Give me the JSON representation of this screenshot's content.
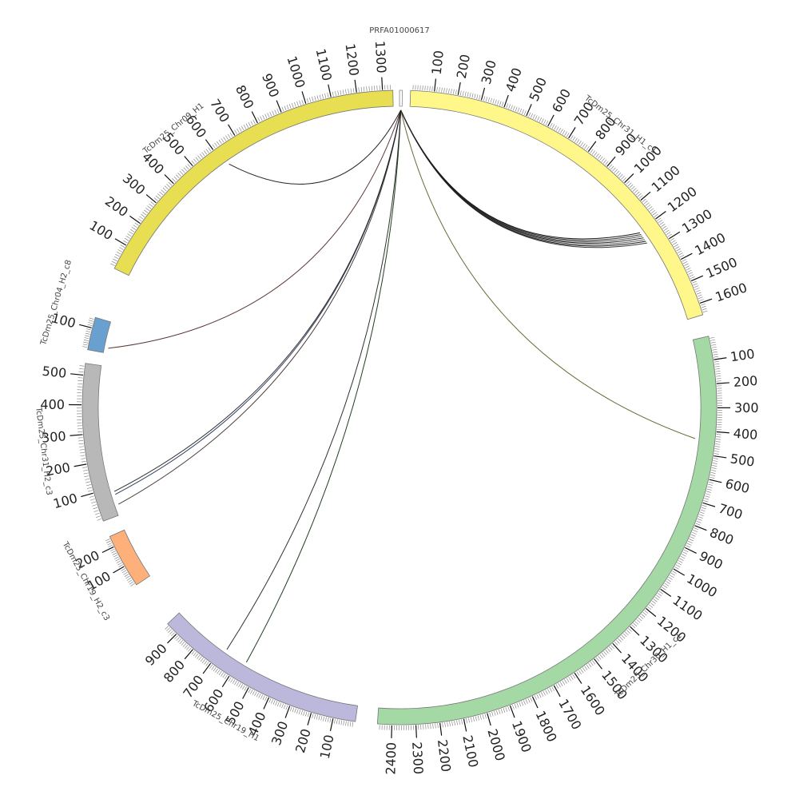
{
  "diagram": {
    "type": "circos",
    "center_contig": {
      "name": "PRFA01000617",
      "start_deg": 0,
      "end_deg": 0.5
    },
    "segments": [
      {
        "name": "TcDm25_Chr31_H1_c1",
        "color": "#fff78a",
        "start_deg": 2,
        "end_deg": 73,
        "length": 1650,
        "label_angle_deg": 38,
        "tick_labels": [
          "100",
          "200",
          "300",
          "400",
          "500",
          "600",
          "700",
          "800",
          "900",
          "1000",
          "1100",
          "1200",
          "1300",
          "1400",
          "1500",
          "1600"
        ]
      },
      {
        "name": "TcDm25_Chr30_H1_c1",
        "color": "#a4d8a4",
        "start_deg": 77,
        "end_deg": 184,
        "length": 2460,
        "label_angle_deg": 136,
        "tick_labels": [
          "100",
          "200",
          "300",
          "400",
          "500",
          "600",
          "700",
          "800",
          "900",
          "1000",
          "1100",
          "1200",
          "1300",
          "1400",
          "1500",
          "1600",
          "1700",
          "1800",
          "1900",
          "2000",
          "2100",
          "2200",
          "2300",
          "2400"
        ]
      },
      {
        "name": "TcDm25_Chr19_H1",
        "color": "#bcb8dc",
        "start_deg": 188,
        "end_deg": 227,
        "length": 960,
        "label_angle_deg": 209,
        "tick_labels": [
          "100",
          "200",
          "300",
          "400",
          "500",
          "600",
          "700",
          "800",
          "900"
        ]
      },
      {
        "name": "TcDm25_Chr19_H2_c3",
        "color": "#fdb07a",
        "start_deg": 236,
        "end_deg": 246,
        "length": 250,
        "label_angle_deg": 241,
        "tick_labels": [
          "100",
          "200"
        ]
      },
      {
        "name": "TcDm25_Chr31_H2_c3",
        "color": "#b8b8b8",
        "start_deg": 249,
        "end_deg": 278,
        "length": 540,
        "label_angle_deg": 263,
        "tick_labels": [
          "100",
          "200",
          "300",
          "400",
          "500"
        ]
      },
      {
        "name": "TcDm25_Chr04_H2_c8",
        "color": "#6aa0cf",
        "start_deg": 280.5,
        "end_deg": 286.5,
        "length": 150,
        "label_angle_deg": 287,
        "tick_labels": [
          "100"
        ]
      },
      {
        "name": "TcDm25_Chr09_H1",
        "color": "#e8de52",
        "start_deg": 296,
        "end_deg": 358.8,
        "length": 1340,
        "label_angle_deg": 321,
        "tick_labels": [
          "100",
          "200",
          "300",
          "400",
          "500",
          "600",
          "700",
          "800",
          "900",
          "1000",
          "1100",
          "1200",
          "1300"
        ]
      }
    ],
    "links": [
      {
        "to_deg": 54.0,
        "color": "#000000"
      },
      {
        "to_deg": 54.4,
        "color": "#1a1a1a"
      },
      {
        "to_deg": 54.8,
        "color": "#333333"
      },
      {
        "to_deg": 55.2,
        "color": "#000000"
      },
      {
        "to_deg": 55.6,
        "color": "#4a4a4a"
      },
      {
        "to_deg": 56.0,
        "color": "#000000"
      },
      {
        "to_deg": 56.4,
        "color": "#222222"
      },
      {
        "to_deg": 96.0,
        "color": "#5a5a20"
      },
      {
        "to_deg": 211.0,
        "color": "#0a2a0a"
      },
      {
        "to_deg": 215.5,
        "color": "#1a1a1a"
      },
      {
        "to_deg": 251.0,
        "color": "#3a2a2a"
      },
      {
        "to_deg": 253.0,
        "color": "#1a2a4a"
      },
      {
        "to_deg": 253.6,
        "color": "#1a1a1a"
      },
      {
        "to_deg": 281.5,
        "color": "#4a2222"
      },
      {
        "to_deg": 325.0,
        "color": "#111111"
      }
    ]
  }
}
